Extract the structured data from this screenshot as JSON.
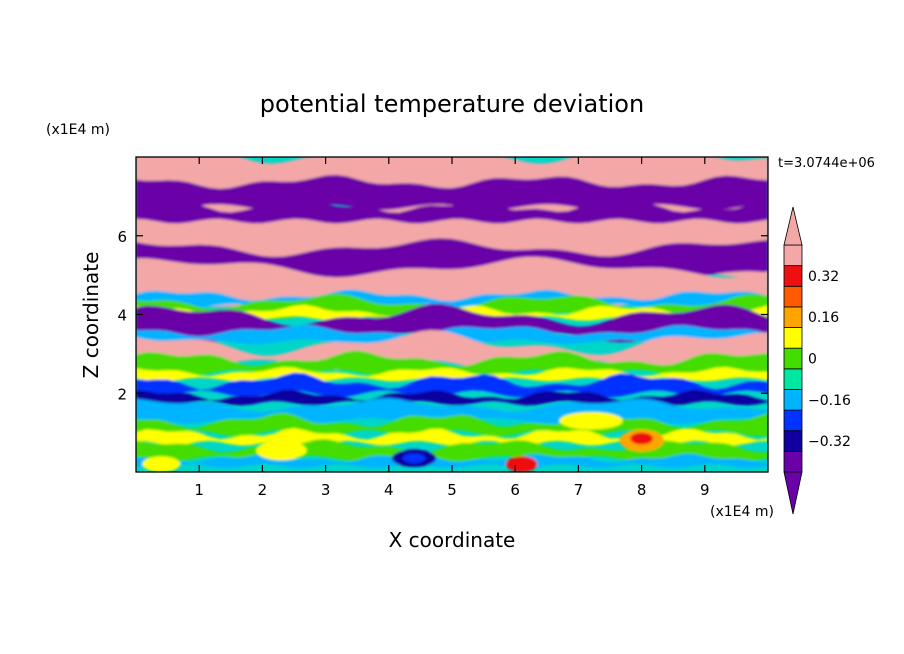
{
  "chart_data": {
    "type": "heatmap",
    "title": "potential temperature deviation",
    "xlabel": "X coordinate",
    "ylabel": "Z coordinate",
    "x_unit": "(x1E4 m)",
    "y_unit": "(x1E4 m)",
    "time_label": "t=3.0744e+06",
    "xlim": [
      0,
      10
    ],
    "ylim": [
      0,
      8
    ],
    "x_ticks": [
      1,
      2,
      3,
      4,
      5,
      6,
      7,
      8,
      9
    ],
    "y_ticks": [
      2,
      4,
      6
    ],
    "colorbar": {
      "levels": [
        -0.4,
        -0.32,
        -0.24,
        -0.16,
        -0.08,
        0,
        0.08,
        0.16,
        0.24,
        0.32,
        0.4
      ],
      "labeled": [
        {
          "value": 0.32,
          "text": "0.32"
        },
        {
          "value": 0.16,
          "text": "0.16"
        },
        {
          "value": 0,
          "text": "0"
        },
        {
          "value": -0.16,
          "text": "−0.16"
        },
        {
          "value": -0.32,
          "text": "−0.32"
        }
      ],
      "colors": [
        "#6a00a8",
        "#1000a0",
        "#0033ff",
        "#00b4ff",
        "#00e8a0",
        "#44dd00",
        "#ffff00",
        "#ffa500",
        "#ff5a00",
        "#ee1010",
        "#f4a7a7"
      ],
      "over_color": "#f4a7a7",
      "under_color": "#6a00a8"
    }
  }
}
